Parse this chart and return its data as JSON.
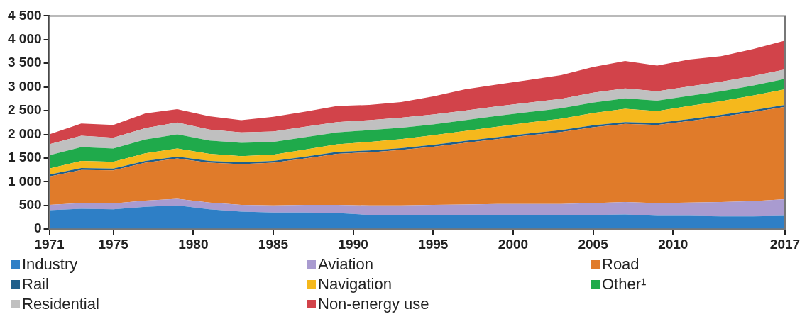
{
  "chart_data": {
    "type": "area",
    "stacked": true,
    "x": [
      1971,
      1973,
      1975,
      1977,
      1979,
      1981,
      1983,
      1985,
      1987,
      1989,
      1991,
      1993,
      1995,
      1997,
      1999,
      2001,
      2003,
      2005,
      2007,
      2009,
      2011,
      2013,
      2015,
      2017
    ],
    "series": [
      {
        "name": "Industry",
        "color": "#2e7fc6",
        "values": [
          400,
          430,
          420,
          470,
          500,
          420,
          370,
          350,
          350,
          340,
          300,
          300,
          300,
          300,
          300,
          290,
          290,
          300,
          310,
          280,
          280,
          270,
          270,
          280
        ]
      },
      {
        "name": "Aviation",
        "color": "#a99bd0",
        "values": [
          110,
          120,
          120,
          130,
          140,
          140,
          140,
          150,
          160,
          170,
          200,
          200,
          210,
          220,
          230,
          240,
          240,
          250,
          260,
          270,
          280,
          300,
          320,
          350
        ]
      },
      {
        "name": "Road",
        "color": "#e07b2a",
        "values": [
          600,
          700,
          700,
          800,
          850,
          840,
          860,
          900,
          980,
          1080,
          1120,
          1170,
          1230,
          1300,
          1370,
          1450,
          1520,
          1600,
          1650,
          1650,
          1720,
          1800,
          1880,
          1950
        ]
      },
      {
        "name": "Rail",
        "color": "#1f5f8b",
        "values": [
          40,
          40,
          40,
          40,
          40,
          40,
          40,
          40,
          40,
          40,
          40,
          40,
          40,
          40,
          40,
          40,
          40,
          40,
          40,
          40,
          40,
          40,
          40,
          40
        ]
      },
      {
        "name": "Navigation",
        "color": "#f5b81c",
        "values": [
          130,
          150,
          140,
          160,
          170,
          150,
          130,
          130,
          150,
          160,
          180,
          190,
          200,
          210,
          220,
          230,
          240,
          260,
          280,
          250,
          280,
          290,
          310,
          330
        ]
      },
      {
        "name": "Other¹",
        "color": "#1faa4b",
        "values": [
          280,
          290,
          280,
          290,
          300,
          280,
          280,
          270,
          260,
          250,
          250,
          240,
          230,
          230,
          230,
          220,
          220,
          220,
          220,
          220,
          210,
          210,
          210,
          220
        ]
      },
      {
        "name": "Residential",
        "color": "#c0c0c0",
        "values": [
          230,
          240,
          230,
          240,
          250,
          230,
          220,
          220,
          220,
          220,
          210,
          210,
          210,
          200,
          200,
          200,
          200,
          210,
          210,
          200,
          200,
          200,
          200,
          200
        ]
      },
      {
        "name": "Non-energy use",
        "color": "#d2434a",
        "values": [
          210,
          260,
          270,
          310,
          280,
          280,
          260,
          310,
          320,
          340,
          320,
          330,
          380,
          450,
          460,
          480,
          500,
          540,
          580,
          540,
          570,
          540,
          570,
          610
        ]
      }
    ],
    "xlim": [
      1971,
      2017
    ],
    "xticks": [
      1971,
      1975,
      1980,
      1985,
      1990,
      1995,
      2000,
      2005,
      2010,
      2017
    ],
    "ylim": [
      0,
      4500
    ],
    "yticks": [
      0,
      500,
      {
        "value": 1000,
        "label": "1 000"
      },
      {
        "value": 1500,
        "label": "1 500"
      },
      {
        "value": 2000,
        "label": "2 000"
      },
      {
        "value": 2500,
        "label": "2 500"
      },
      {
        "value": 3000,
        "label": "3 000"
      },
      {
        "value": 3500,
        "label": "3 500"
      },
      {
        "value": 4000,
        "label": "4 000"
      },
      {
        "value": 4500,
        "label": "4 500"
      }
    ],
    "grid": false,
    "legend": "bottom"
  }
}
